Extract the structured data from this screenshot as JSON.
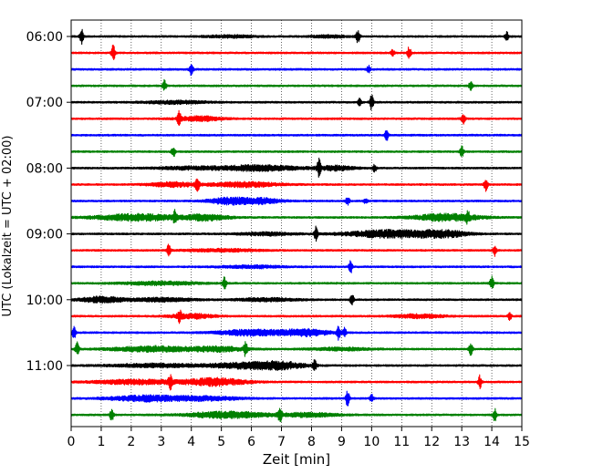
{
  "chart_data": {
    "type": "line",
    "title": "",
    "xlabel": "Zeit  [min]",
    "ylabel": "UTC (Lokalzeit = UTC + 02:00)",
    "xlim": [
      0,
      15
    ],
    "x_ticks": [
      "0",
      "1",
      "2",
      "3",
      "4",
      "5",
      "6",
      "7",
      "8",
      "9",
      "10",
      "11",
      "12",
      "13",
      "14",
      "15"
    ],
    "y_tick_labels": [
      "06:00",
      "07:00",
      "08:00",
      "09:00",
      "10:00",
      "11:00"
    ],
    "y_tick_rows": [
      0,
      4,
      8,
      12,
      16,
      20
    ],
    "grid_x": true,
    "trace_colors": [
      "#000000",
      "#ff0000",
      "#0000ff",
      "#008000"
    ],
    "rows": [
      {
        "start": "06:00",
        "events": [
          [
            0.35,
            8,
            2
          ],
          [
            9.55,
            8,
            2
          ],
          [
            14.5,
            5,
            2
          ]
        ],
        "bursts": [
          [
            5.3,
            0.8,
            1.3
          ],
          [
            8.6,
            0.6,
            1.2
          ]
        ]
      },
      {
        "start": "06:15",
        "events": [
          [
            1.4,
            9,
            2
          ],
          [
            11.25,
            7,
            2
          ],
          [
            10.7,
            4,
            2
          ]
        ],
        "bursts": []
      },
      {
        "start": "06:30",
        "events": [
          [
            4.0,
            8,
            2
          ],
          [
            9.9,
            4,
            2
          ]
        ],
        "bursts": []
      },
      {
        "start": "06:45",
        "events": [
          [
            3.1,
            6,
            2
          ],
          [
            13.3,
            6,
            2
          ]
        ],
        "bursts": []
      },
      {
        "start": "07:00",
        "events": [
          [
            10.0,
            9,
            2
          ],
          [
            9.6,
            4,
            2
          ]
        ],
        "bursts": [
          [
            3.5,
            1.0,
            1.6
          ]
        ]
      },
      {
        "start": "07:15",
        "events": [
          [
            3.6,
            8,
            2
          ],
          [
            13.05,
            7,
            2
          ]
        ],
        "bursts": [
          [
            4.3,
            0.7,
            2.5
          ]
        ]
      },
      {
        "start": "07:30",
        "events": [
          [
            10.5,
            6,
            2
          ]
        ],
        "bursts": []
      },
      {
        "start": "07:45",
        "events": [
          [
            3.4,
            6,
            2
          ],
          [
            13.0,
            6,
            2
          ]
        ],
        "bursts": []
      },
      {
        "start": "08:00",
        "events": [
          [
            8.25,
            9,
            2
          ],
          [
            10.1,
            4,
            2
          ]
        ],
        "bursts": [
          [
            6.3,
            1.3,
            3.0
          ],
          [
            8.8,
            0.6,
            2.5
          ],
          [
            4.0,
            1.2,
            1.5
          ]
        ]
      },
      {
        "start": "08:15",
        "events": [
          [
            4.2,
            7,
            2
          ],
          [
            13.8,
            7,
            2
          ]
        ],
        "bursts": [
          [
            3.4,
            0.8,
            2.4
          ],
          [
            5.8,
            1.1,
            2.6
          ]
        ]
      },
      {
        "start": "08:30",
        "events": [
          [
            9.2,
            5,
            2
          ],
          [
            9.8,
            3,
            2
          ]
        ],
        "bursts": [
          [
            5.3,
            0.7,
            3.8
          ],
          [
            6.4,
            0.6,
            2.8
          ]
        ]
      },
      {
        "start": "08:45",
        "events": [
          [
            3.45,
            6,
            2
          ],
          [
            13.2,
            5,
            2
          ]
        ],
        "bursts": [
          [
            2.2,
            1.4,
            3.5
          ],
          [
            4.5,
            0.7,
            3.2
          ],
          [
            12.5,
            1.1,
            3.8
          ]
        ]
      },
      {
        "start": "09:00",
        "events": [
          [
            8.15,
            9,
            2
          ]
        ],
        "bursts": [
          [
            10.6,
            1.4,
            4.0
          ],
          [
            12.4,
            0.8,
            3.5
          ],
          [
            6.5,
            0.9,
            1.6
          ]
        ]
      },
      {
        "start": "09:15",
        "events": [
          [
            3.25,
            7,
            2
          ],
          [
            14.1,
            6,
            2
          ]
        ],
        "bursts": [
          [
            5.0,
            1.2,
            1.4
          ]
        ]
      },
      {
        "start": "09:30",
        "events": [
          [
            9.3,
            7,
            2
          ]
        ],
        "bursts": [
          [
            6.0,
            1.0,
            1.4
          ]
        ]
      },
      {
        "start": "09:45",
        "events": [
          [
            5.1,
            7,
            2
          ],
          [
            14.0,
            7,
            2
          ]
        ],
        "bursts": [
          [
            3.0,
            1.2,
            1.8
          ]
        ]
      },
      {
        "start": "10:00",
        "events": [
          [
            9.35,
            7,
            2
          ]
        ],
        "bursts": [
          [
            1.0,
            0.7,
            3.2
          ],
          [
            3.0,
            1.0,
            2.0
          ],
          [
            6.5,
            1.0,
            1.6
          ]
        ]
      },
      {
        "start": "10:15",
        "events": [
          [
            3.6,
            6,
            2
          ],
          [
            14.6,
            4,
            2
          ]
        ],
        "bursts": [
          [
            4.0,
            0.7,
            2.6
          ],
          [
            11.6,
            0.8,
            2.0
          ]
        ]
      },
      {
        "start": "10:30",
        "events": [
          [
            0.1,
            7,
            2
          ],
          [
            8.9,
            8,
            2
          ],
          [
            9.1,
            5,
            2
          ]
        ],
        "bursts": [
          [
            6.0,
            1.1,
            3.2
          ],
          [
            7.8,
            0.8,
            3.5
          ]
        ]
      },
      {
        "start": "10:45",
        "events": [
          [
            0.2,
            7,
            2
          ],
          [
            5.8,
            7,
            2
          ],
          [
            13.3,
            7,
            2
          ]
        ],
        "bursts": [
          [
            2.7,
            1.3,
            3.0
          ],
          [
            4.9,
            0.9,
            2.5
          ],
          [
            9.0,
            1.0,
            1.5
          ]
        ]
      },
      {
        "start": "11:00",
        "events": [
          [
            8.1,
            6,
            2
          ]
        ],
        "bursts": [
          [
            5.8,
            1.2,
            3.0
          ],
          [
            7.0,
            0.8,
            3.2
          ],
          [
            2.8,
            1.5,
            1.8
          ]
        ]
      },
      {
        "start": "11:15",
        "events": [
          [
            3.3,
            7,
            2
          ],
          [
            13.6,
            7,
            2
          ]
        ],
        "bursts": [
          [
            4.8,
            1.0,
            4.0
          ],
          [
            2.2,
            1.4,
            2.5
          ]
        ]
      },
      {
        "start": "11:30",
        "events": [
          [
            9.2,
            9,
            2
          ],
          [
            10.0,
            4,
            2
          ]
        ],
        "bursts": [
          [
            2.5,
            1.2,
            3.0
          ],
          [
            4.5,
            1.1,
            2.2
          ]
        ]
      },
      {
        "start": "11:45",
        "events": [
          [
            1.35,
            7,
            2
          ],
          [
            6.95,
            9,
            2
          ],
          [
            14.1,
            7,
            2
          ]
        ],
        "bursts": [
          [
            5.2,
            1.3,
            3.5
          ],
          [
            7.9,
            1.0,
            2.0
          ]
        ]
      }
    ]
  }
}
